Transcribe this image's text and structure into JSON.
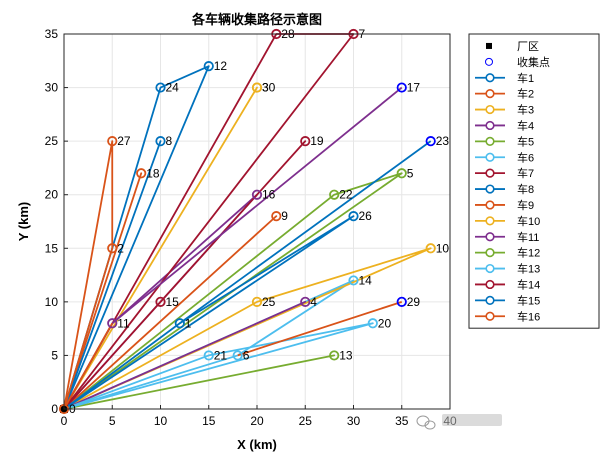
{
  "chart_data": {
    "type": "line",
    "title": "各车辆收集路径示意图",
    "xlabel": "X (km)",
    "ylabel": "Y (km)",
    "xlim": [
      0,
      40
    ],
    "ylim": [
      0,
      35
    ],
    "xticks": [
      0,
      5,
      10,
      15,
      20,
      25,
      30,
      35,
      40
    ],
    "yticks": [
      0,
      5,
      10,
      15,
      20,
      25,
      30,
      35
    ],
    "grid": true,
    "depot": {
      "name": "厂区",
      "x": 0,
      "y": 0,
      "label": "0"
    },
    "collection_legend": "收集点",
    "points": [
      {
        "id": "1",
        "x": 12,
        "y": 8
      },
      {
        "id": "2",
        "x": 5,
        "y": 15
      },
      {
        "id": "3",
        "x": 20,
        "y": 30
      },
      {
        "id": "4",
        "x": 25,
        "y": 10
      },
      {
        "id": "5",
        "x": 35,
        "y": 22
      },
      {
        "id": "6",
        "x": 18,
        "y": 5
      },
      {
        "id": "7",
        "x": 30,
        "y": 35
      },
      {
        "id": "8",
        "x": 10,
        "y": 25
      },
      {
        "id": "9",
        "x": 22,
        "y": 18
      },
      {
        "id": "10",
        "x": 38,
        "y": 15
      },
      {
        "id": "11",
        "x": 5,
        "y": 8
      },
      {
        "id": "12",
        "x": 15,
        "y": 32
      },
      {
        "id": "13",
        "x": 28,
        "y": 5
      },
      {
        "id": "14",
        "x": 30,
        "y": 12
      },
      {
        "id": "15",
        "x": 10,
        "y": 10
      },
      {
        "id": "16",
        "x": 20,
        "y": 20
      },
      {
        "id": "17",
        "x": 35,
        "y": 30
      },
      {
        "id": "18",
        "x": 8,
        "y": 22
      },
      {
        "id": "19",
        "x": 25,
        "y": 25
      },
      {
        "id": "20",
        "x": 32,
        "y": 8
      },
      {
        "id": "21",
        "x": 15,
        "y": 5
      },
      {
        "id": "22",
        "x": 28,
        "y": 20
      },
      {
        "id": "23",
        "x": 38,
        "y": 25
      },
      {
        "id": "24",
        "x": 10,
        "y": 30
      },
      {
        "id": "25",
        "x": 20,
        "y": 10
      },
      {
        "id": "26",
        "x": 30,
        "y": 18
      },
      {
        "id": "27",
        "x": 5,
        "y": 25
      },
      {
        "id": "28",
        "x": 22,
        "y": 35
      },
      {
        "id": "29",
        "x": 35,
        "y": 10
      },
      {
        "id": "30",
        "x": 20,
        "y": 30
      }
    ],
    "series": [
      {
        "name": "车1",
        "color": "#0072BD",
        "route": [
          "0",
          "24",
          "12",
          "0"
        ]
      },
      {
        "name": "车2",
        "color": "#D95319",
        "route": [
          "0",
          "18",
          "0"
        ]
      },
      {
        "name": "车3",
        "color": "#EDB120",
        "route": [
          "0",
          "30",
          "3",
          "0"
        ]
      },
      {
        "name": "车4",
        "color": "#7E2F8E",
        "route": [
          "0",
          "16",
          "11",
          "0"
        ]
      },
      {
        "name": "车5",
        "color": "#77AC30",
        "route": [
          "0",
          "22",
          "5",
          "0"
        ]
      },
      {
        "name": "车6",
        "color": "#4DBEEE",
        "route": [
          "0",
          "6",
          "14",
          "0"
        ]
      },
      {
        "name": "车7",
        "color": "#A2142F",
        "route": [
          "0",
          "28",
          "7",
          "0"
        ]
      },
      {
        "name": "车8",
        "color": "#0072BD",
        "route": [
          "0",
          "8",
          "0"
        ]
      },
      {
        "name": "车9",
        "color": "#D95319",
        "route": [
          "0",
          "9",
          "0"
        ]
      },
      {
        "name": "车10",
        "color": "#EDB120",
        "route": [
          "0",
          "25",
          "10",
          "0"
        ]
      },
      {
        "name": "车11",
        "color": "#7E2F8E",
        "route": [
          "0",
          "4",
          "0"
        ]
      },
      {
        "name": "车12",
        "color": "#77AC30",
        "route": [
          "0",
          "13",
          "0"
        ]
      },
      {
        "name": "车13",
        "color": "#4DBEEE",
        "route": [
          "0",
          "20",
          "21",
          "0"
        ]
      },
      {
        "name": "车14",
        "color": "#A2142F",
        "route": [
          "0",
          "15",
          "19",
          "0"
        ]
      },
      {
        "name": "车15",
        "color": "#0072BD",
        "route": [
          "0",
          "1",
          "26",
          "0"
        ]
      },
      {
        "name": "车16",
        "color": "#D95319",
        "route": [
          "0",
          "2",
          "27",
          "0"
        ]
      }
    ],
    "extra_segments": [
      {
        "color": "#7E2F8E",
        "from": "11",
        "to": "17"
      },
      {
        "color": "#0072BD",
        "from": "1",
        "to": "23"
      },
      {
        "color": "#D95319",
        "from": "6",
        "to": "29"
      },
      {
        "color": "#D95319",
        "from": "11",
        "to": "0"
      }
    ]
  },
  "watermark": "💬"
}
